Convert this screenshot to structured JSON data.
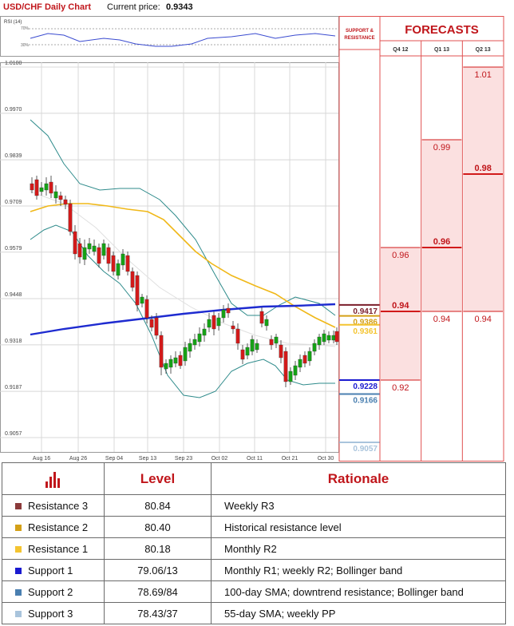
{
  "header": {
    "title": "USD/CHF Daily Chart",
    "price_label": "Current price:",
    "price_value": "0.9343"
  },
  "rsi": {
    "label": "RSI (14)",
    "upper": "70%",
    "lower": "30%"
  },
  "chart_data": {
    "type": "candlestick",
    "title": "USD/CHF Daily Chart",
    "y_ticks": [
      "1.0100",
      "0.9970",
      "0.9839",
      "0.9709",
      "0.9579",
      "0.9448",
      "0.9318",
      "0.9187",
      "0.9057"
    ],
    "ylim": [
      0.9057,
      1.01
    ],
    "x_ticks": [
      "Aug 16",
      "Aug 26",
      "Sep 04",
      "Sep 13",
      "Sep 23",
      "Oct 02",
      "Oct 11",
      "Oct 21",
      "Oct 30"
    ],
    "levels": [
      {
        "label": "0.9417",
        "value": 0.9417,
        "color": "#7a1d2a"
      },
      {
        "label": "0.9386",
        "value": 0.9386,
        "color": "#d4a017"
      },
      {
        "label": "0.9361",
        "value": 0.9361,
        "color": "#f4c430"
      },
      {
        "label": "0.9228",
        "value": 0.9228,
        "color": "#1a1ad0"
      },
      {
        "label": "0.9166",
        "value": 0.9166,
        "color": "#4a7fb0"
      },
      {
        "label": "0.9057",
        "value": 0.9057,
        "color": "#a9c4dc"
      }
    ],
    "grid": true
  },
  "forecasts": {
    "support_header": "SUPPORT & RESISTANCE",
    "title": "FORECASTS",
    "columns": [
      {
        "label": "Q4 12",
        "values": [
          {
            "label": "0.96",
            "bold": false
          },
          {
            "label": "0.94",
            "bold": true
          },
          {
            "label": "0.92",
            "bold": false
          }
        ]
      },
      {
        "label": "Q1 13",
        "values": [
          {
            "label": "0.99",
            "bold": false
          },
          {
            "label": "0.96",
            "bold": true
          },
          {
            "label": "0.94",
            "bold": false
          }
        ]
      },
      {
        "label": "Q2 13",
        "values": [
          {
            "label": "1.01",
            "bold": false
          },
          {
            "label": "0.98",
            "bold": true
          },
          {
            "label": "0.94",
            "bold": false
          }
        ]
      }
    ]
  },
  "table": {
    "headers": [
      "",
      "Level",
      "Rationale"
    ],
    "rows": [
      {
        "name": "Resistance 3",
        "color": "#8b3a3a",
        "level": "80.84",
        "rationale": "Weekly R3"
      },
      {
        "name": "Resistance 2",
        "color": "#d4a017",
        "level": "80.40",
        "rationale": "Historical resistance level"
      },
      {
        "name": "Resistance 1",
        "color": "#f4c430",
        "level": "80.18",
        "rationale": "Monthly R2"
      },
      {
        "name": "Support 1",
        "color": "#1a1ad0",
        "level": "79.06/13",
        "rationale": "Monthly R1; weekly R2; Bollinger band"
      },
      {
        "name": "Support 2",
        "color": "#4a7fb0",
        "level": "78.69/84",
        "rationale": "100-day SMA; downtrend resistance; Bollinger band"
      },
      {
        "name": "Support 3",
        "color": "#a9c4dc",
        "level": "78.43/37",
        "rationale": "55-day SMA; weekly PP"
      }
    ]
  }
}
